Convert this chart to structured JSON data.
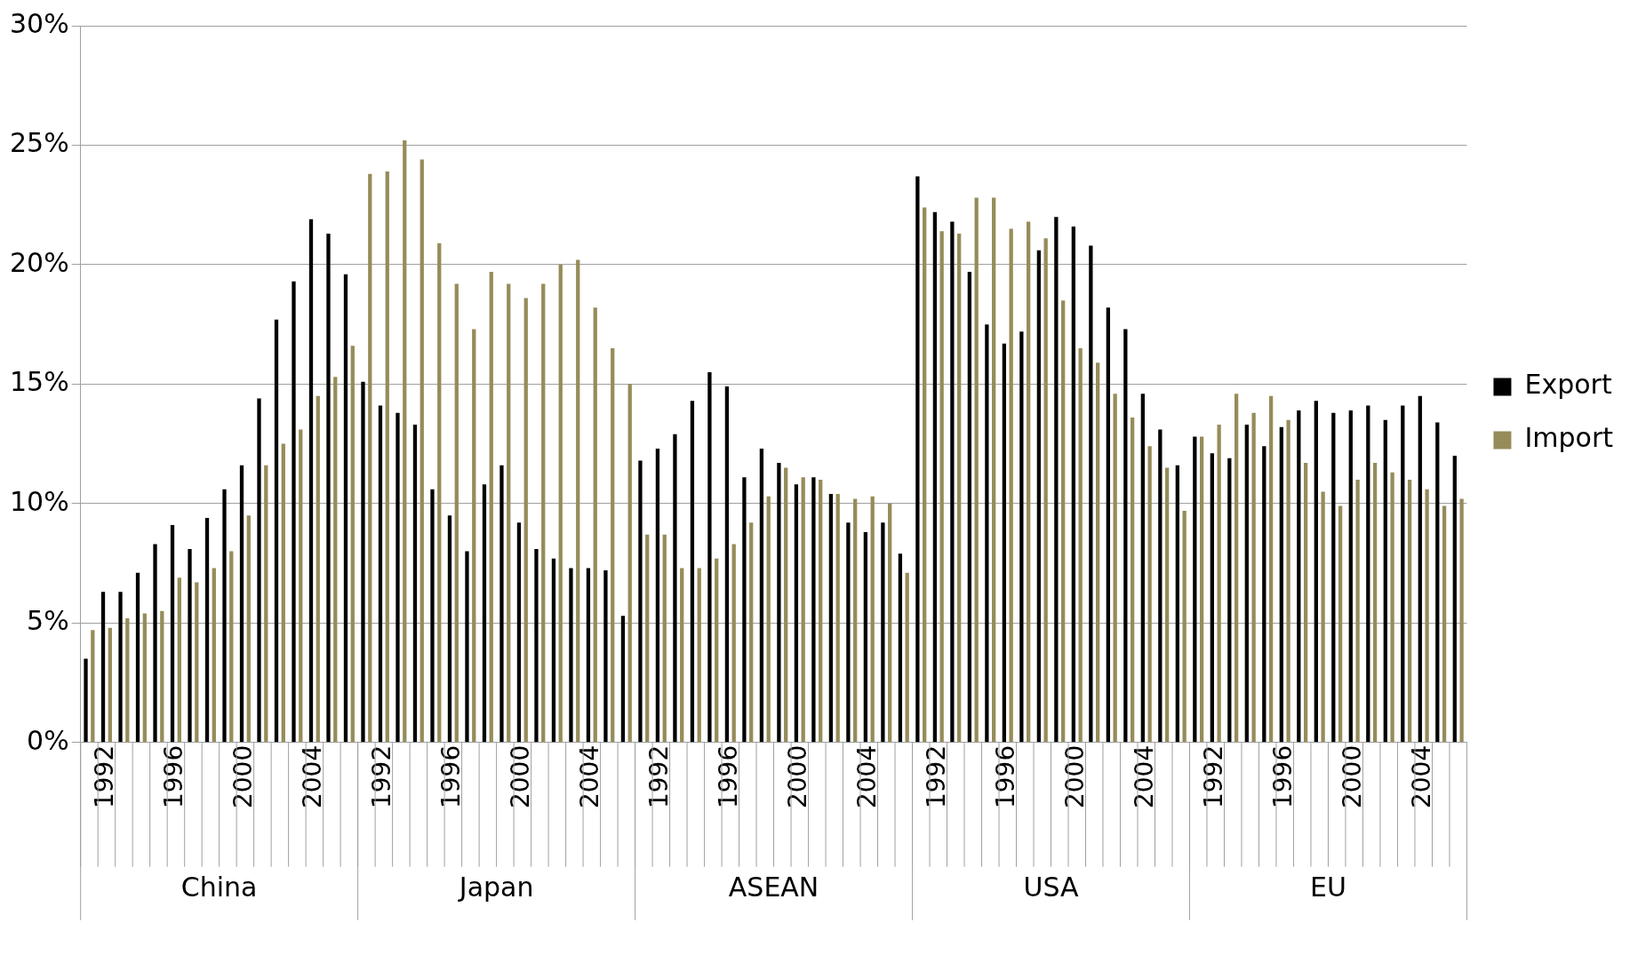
{
  "chart_data": {
    "type": "bar",
    "categories": [
      null,
      "1992",
      null,
      null,
      null,
      "1996",
      null,
      null,
      null,
      "2000",
      null,
      null,
      null,
      "2004",
      null,
      null,
      null,
      "1992",
      null,
      null,
      null,
      "1996",
      null,
      null,
      null,
      "2000",
      null,
      null,
      null,
      "2004",
      null,
      null,
      null,
      "1992",
      null,
      null,
      null,
      "1996",
      null,
      null,
      null,
      "2000",
      null,
      null,
      null,
      "2004",
      null,
      null,
      null,
      "1992",
      null,
      null,
      null,
      "1996",
      null,
      null,
      null,
      "2000",
      null,
      null,
      null,
      "2004",
      null,
      null,
      null,
      "1992",
      null,
      null,
      null,
      "1996",
      null,
      null,
      null,
      "2000",
      null,
      null,
      null,
      "2004",
      null,
      null
    ],
    "series": [
      {
        "name": "Export",
        "color": "#000000",
        "values": [
          3.5,
          6.3,
          6.3,
          7.1,
          8.3,
          9.1,
          8.1,
          9.4,
          10.6,
          11.6,
          14.4,
          17.7,
          19.3,
          21.9,
          21.3,
          19.6,
          15.1,
          14.1,
          13.8,
          13.3,
          10.6,
          9.5,
          8.0,
          10.8,
          11.6,
          9.2,
          8.1,
          7.7,
          7.3,
          7.3,
          7.2,
          5.3,
          11.8,
          12.3,
          12.9,
          14.3,
          15.5,
          14.9,
          11.1,
          12.3,
          11.7,
          10.8,
          11.1,
          10.4,
          9.2,
          8.8,
          9.2,
          7.9,
          23.7,
          22.2,
          21.8,
          19.7,
          17.5,
          16.7,
          17.2,
          20.6,
          22.0,
          21.6,
          20.8,
          18.2,
          17.3,
          14.6,
          13.1,
          11.6,
          12.8,
          12.1,
          11.9,
          13.3,
          12.4,
          13.2,
          13.9,
          14.3,
          13.8,
          13.9,
          14.1,
          13.5,
          14.1,
          14.5,
          13.4,
          12.0
        ]
      },
      {
        "name": "Import",
        "color": "#968c5a",
        "values": [
          4.7,
          4.8,
          5.2,
          5.4,
          5.5,
          6.9,
          6.7,
          7.3,
          8.0,
          9.5,
          11.6,
          12.5,
          13.1,
          14.5,
          15.3,
          16.6,
          23.8,
          23.9,
          25.2,
          24.4,
          20.9,
          19.2,
          17.3,
          19.7,
          19.2,
          18.6,
          19.2,
          20.0,
          20.2,
          18.2,
          16.5,
          15.0,
          8.7,
          8.7,
          7.3,
          7.3,
          7.7,
          8.3,
          9.2,
          10.3,
          11.5,
          11.1,
          11.0,
          10.4,
          10.2,
          10.3,
          10.0,
          7.1,
          22.4,
          21.4,
          21.3,
          22.8,
          22.8,
          21.5,
          21.8,
          21.1,
          18.5,
          16.5,
          15.9,
          14.6,
          13.6,
          12.4,
          11.5,
          9.7,
          12.8,
          13.3,
          14.6,
          13.8,
          14.5,
          13.5,
          11.7,
          10.5,
          9.9,
          11.0,
          11.7,
          11.3,
          11.0,
          10.6,
          9.9,
          10.2
        ]
      }
    ],
    "annotations": [
      "China",
      "Japan",
      "ASEAN",
      "USA",
      "EU"
    ],
    "ylim": [
      0,
      30
    ],
    "yticks": [
      {
        "value": 0,
        "label": "0%"
      },
      {
        "value": 5,
        "label": "5%"
      },
      {
        "value": 10,
        "label": "10%"
      },
      {
        "value": 15,
        "label": "15%"
      },
      {
        "value": 20,
        "label": "20%"
      },
      {
        "value": 25,
        "label": "25%"
      },
      {
        "value": 30,
        "label": "30%"
      }
    ],
    "grid": "y",
    "legend": "right"
  }
}
